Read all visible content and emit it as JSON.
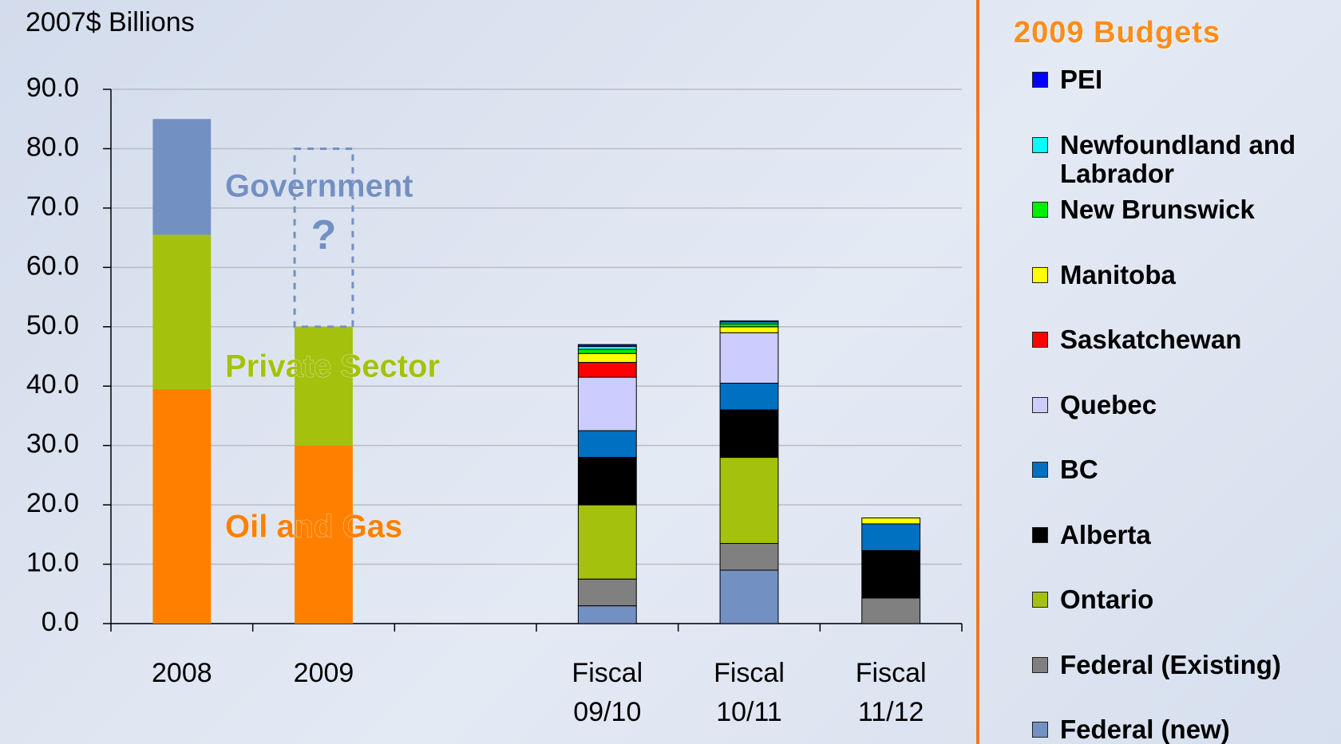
{
  "chart_data": {
    "type": "bar",
    "stacked": true,
    "y_label": "2007$ Billions",
    "categories": [
      "2008",
      "2009",
      null,
      "Fiscal 09/10",
      "Fiscal 10/11",
      "Fiscal 11/12"
    ],
    "ylim": [
      0,
      90
    ],
    "yticks": [
      {
        "value": 0,
        "label": "0.0"
      },
      {
        "value": 10,
        "label": "10.0"
      },
      {
        "value": 20,
        "label": "20.0"
      },
      {
        "value": 30,
        "label": "30.0"
      },
      {
        "value": 40,
        "label": "40.0"
      },
      {
        "value": 50,
        "label": "50.0"
      },
      {
        "value": 60,
        "label": "60.0"
      },
      {
        "value": 70,
        "label": "70.0"
      },
      {
        "value": 80,
        "label": "80.0"
      },
      {
        "value": 90,
        "label": "90.0"
      }
    ],
    "grid": true,
    "series": [
      {
        "name": "Oil and Gas",
        "color": "#ff8000",
        "values": [
          39.5,
          30,
          null,
          null,
          null,
          null
        ]
      },
      {
        "name": "Private Sector",
        "color": "#a4c10e",
        "values": [
          26,
          20,
          null,
          null,
          null,
          null
        ]
      },
      {
        "name": "Government",
        "color": "#7390c2",
        "values": [
          19.5,
          null,
          null,
          null,
          null,
          null
        ]
      }
    ],
    "annotation": {
      "text": "?",
      "category": 1,
      "from": 50,
      "to": 80
    },
    "legend_title": "2009 Budgets",
    "budget_series": [
      {
        "name": "PEI",
        "color": "#0000ff",
        "values": [
          null,
          null,
          null,
          0.3,
          0.2,
          null
        ]
      },
      {
        "name": "Newfoundland and Labrador",
        "color": "#00ffff",
        "values": [
          null,
          null,
          null,
          0.5,
          0.3,
          null
        ]
      },
      {
        "name": "New Brunswick",
        "color": "#00ee00",
        "values": [
          null,
          null,
          null,
          0.7,
          0.5,
          null
        ]
      },
      {
        "name": "Manitoba",
        "color": "#ffff00",
        "values": [
          null,
          null,
          null,
          1.5,
          1,
          1
        ]
      },
      {
        "name": "Saskatchewan",
        "color": "#ff0000",
        "values": [
          null,
          null,
          null,
          2.5,
          null,
          null
        ]
      },
      {
        "name": "Quebec",
        "color": "#ccccff",
        "values": [
          null,
          null,
          null,
          9,
          8.5,
          null
        ]
      },
      {
        "name": "BC",
        "color": "#0070c0",
        "values": [
          null,
          null,
          null,
          4.5,
          4.5,
          4.5
        ]
      },
      {
        "name": "Alberta",
        "color": "#000000",
        "values": [
          null,
          null,
          null,
          8,
          8,
          8
        ]
      },
      {
        "name": "Ontario",
        "color": "#a4c10e",
        "values": [
          null,
          null,
          null,
          12.5,
          14.5,
          null
        ]
      },
      {
        "name": "Federal (Existing)",
        "color": "#808080",
        "values": [
          null,
          null,
          null,
          4.5,
          4.5,
          4.3
        ]
      },
      {
        "name": "Federal (new)",
        "color": "#7390c2",
        "values": [
          null,
          null,
          null,
          3,
          9,
          null
        ]
      }
    ]
  }
}
